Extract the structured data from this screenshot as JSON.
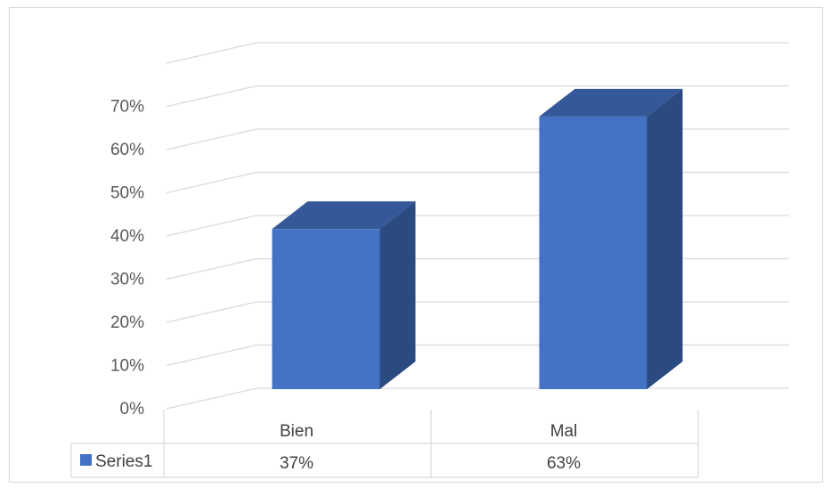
{
  "chart_data": {
    "type": "bar",
    "style": "3d-column",
    "categories": [
      "Bien",
      "Mal"
    ],
    "series": [
      {
        "name": "Series1",
        "values": [
          0.37,
          0.63
        ],
        "labels": [
          "37%",
          "63%"
        ],
        "color": "#4472C4"
      }
    ],
    "y_ticks": [
      "0%",
      "10%",
      "20%",
      "30%",
      "40%",
      "50%",
      "60%",
      "70%"
    ],
    "ylim": [
      0,
      0.8
    ],
    "grid": true,
    "legend": "data-table-left",
    "data_table": true
  },
  "colors": {
    "bar_front": "#4472C4",
    "bar_top": "#355898",
    "bar_side": "#2A4A80",
    "gridline": "#d9d9d9",
    "legend_key": "#4472C4"
  }
}
